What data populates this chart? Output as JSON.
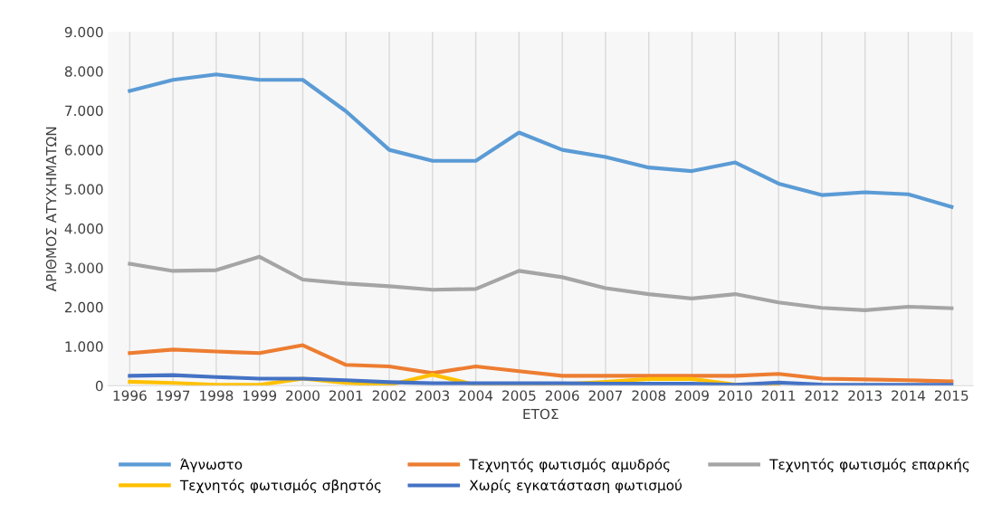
{
  "chart_data": {
    "type": "line",
    "xlabel": "ΕΤΟΣ",
    "ylabel": "ΑΡΙΘΜΟΣ ΑΤΥΧΗΜΑΤΩΝ",
    "categories": [
      "1996",
      "1997",
      "1998",
      "1999",
      "2000",
      "2001",
      "2002",
      "2003",
      "2004",
      "2005",
      "2006",
      "2007",
      "2008",
      "2009",
      "2010",
      "2011",
      "2012",
      "2013",
      "2014",
      "2015"
    ],
    "series": [
      {
        "name": "Άγνωστο",
        "color": "#5b9bd5",
        "values": [
          7500,
          7780,
          7920,
          7780,
          7780,
          6980,
          6000,
          5720,
          5720,
          6440,
          6000,
          5820,
          5550,
          5460,
          5680,
          5140,
          4850,
          4920,
          4870,
          4550
        ]
      },
      {
        "name": "Τεχνητός φωτισμός αμυδρός",
        "color": "#ed7d31",
        "values": [
          830,
          920,
          870,
          830,
          1030,
          530,
          490,
          320,
          490,
          370,
          250,
          250,
          250,
          250,
          250,
          300,
          180,
          160,
          140,
          110
        ]
      },
      {
        "name": "Τεχνητός φωτισμός επαρκής",
        "color": "#a5a5a5",
        "values": [
          3100,
          2920,
          2940,
          3280,
          2700,
          2600,
          2530,
          2440,
          2460,
          2920,
          2760,
          2480,
          2330,
          2220,
          2330,
          2120,
          1980,
          1920,
          2010,
          1970
        ]
      },
      {
        "name": "Τεχνητός φωτισμός σβηστός",
        "color": "#ffc000",
        "values": [
          100,
          70,
          20,
          20,
          180,
          70,
          20,
          280,
          20,
          30,
          40,
          100,
          170,
          170,
          30,
          30,
          null,
          null,
          null,
          null
        ]
      },
      {
        "name": "Χωρίς εγκατάσταση φωτισμού",
        "color": "#4472c4",
        "values": [
          250,
          270,
          220,
          180,
          180,
          140,
          90,
          60,
          60,
          60,
          60,
          50,
          50,
          50,
          20,
          80,
          30,
          20,
          20,
          20
        ]
      }
    ],
    "ylim": [
      0,
      9000
    ],
    "yticks": [
      {
        "value": 0,
        "label": "0"
      },
      {
        "value": 1000,
        "label": "1.000"
      },
      {
        "value": 2000,
        "label": "2.000"
      },
      {
        "value": 3000,
        "label": "3.000"
      },
      {
        "value": 4000,
        "label": "4.000"
      },
      {
        "value": 5000,
        "label": "5.000"
      },
      {
        "value": 6000,
        "label": "6.000"
      },
      {
        "value": 7000,
        "label": "7.000"
      },
      {
        "value": 8000,
        "label": "8.000"
      },
      {
        "value": 9000,
        "label": "9.000"
      }
    ],
    "grid": "x",
    "legend": "bottom",
    "marker": "none",
    "line_style": "solid"
  }
}
